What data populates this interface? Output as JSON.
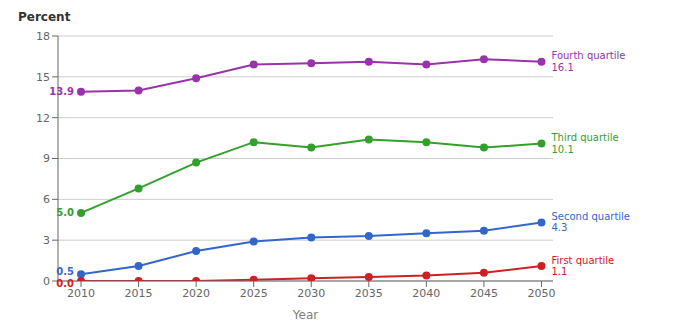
{
  "chart_data": {
    "type": "line",
    "xlabel": "Year",
    "ylabel": "Percent",
    "x": [
      2010,
      2015,
      2020,
      2025,
      2030,
      2035,
      2040,
      2045,
      2050
    ],
    "xlim": [
      2008,
      2051
    ],
    "xticks": [
      2010,
      2015,
      2020,
      2025,
      2030,
      2035,
      2040,
      2045,
      2050
    ],
    "ylim": [
      0,
      18
    ],
    "yticks": [
      0,
      3,
      6,
      9,
      12,
      15,
      18
    ],
    "grid": true,
    "series": [
      {
        "name": "Fourth quartile",
        "color": "#9933AA",
        "marker": "circle",
        "values": [
          13.9,
          14.0,
          14.9,
          15.9,
          16.0,
          16.1,
          15.9,
          16.3,
          16.1
        ],
        "start_label": "13.9",
        "end_label": "16.1"
      },
      {
        "name": "Third quartile",
        "color": "#33A02C",
        "marker": "circle",
        "values": [
          5.0,
          6.8,
          8.7,
          10.2,
          9.8,
          10.4,
          10.2,
          9.8,
          10.1
        ],
        "start_label": "5.0",
        "end_label": "10.1"
      },
      {
        "name": "Second quartile",
        "color": "#3366CC",
        "marker": "circle",
        "values": [
          0.5,
          1.1,
          2.2,
          2.9,
          3.2,
          3.3,
          3.5,
          3.7,
          4.3
        ],
        "start_label": "0.5",
        "end_label": "4.3"
      },
      {
        "name": "First quartile",
        "color": "#CC2222",
        "marker": "circle",
        "values": [
          0.0,
          0.0,
          0.0,
          0.1,
          0.2,
          0.3,
          0.4,
          0.6,
          1.1
        ],
        "start_label": "0.0",
        "end_label": "1.1"
      }
    ]
  }
}
